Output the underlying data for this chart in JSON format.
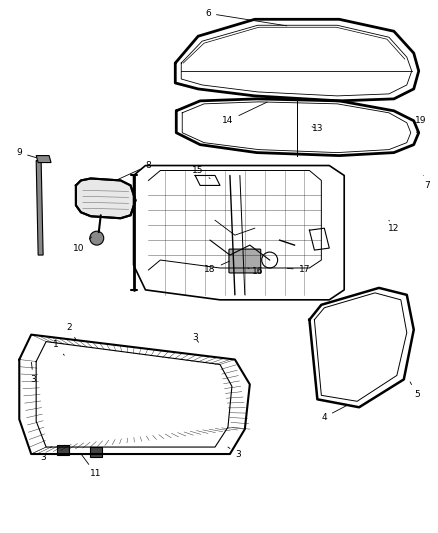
{
  "background_color": "#ffffff",
  "fig_width": 4.38,
  "fig_height": 5.33,
  "dpi": 100
}
